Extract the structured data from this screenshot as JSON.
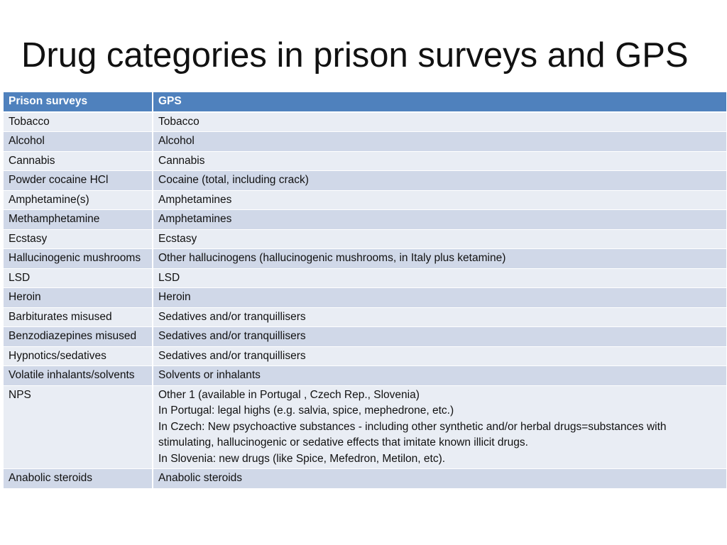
{
  "title": "Drug categories in prison surveys and GPS",
  "table": {
    "headers": [
      "Prison surveys",
      "GPS"
    ],
    "rows": [
      {
        "prison": "Tobacco",
        "gps": [
          "Tobacco"
        ]
      },
      {
        "prison": "Alcohol",
        "gps": [
          "Alcohol"
        ]
      },
      {
        "prison": "Cannabis",
        "gps": [
          "Cannabis"
        ]
      },
      {
        "prison": "Powder cocaine HCl",
        "gps": [
          "Cocaine (total, including crack)"
        ]
      },
      {
        "prison": "Amphetamine(s)",
        "gps": [
          "Amphetamines"
        ]
      },
      {
        "prison": "Methamphetamine",
        "gps": [
          "Amphetamines"
        ]
      },
      {
        "prison": "Ecstasy",
        "gps": [
          "Ecstasy"
        ]
      },
      {
        "prison": "Hallucinogenic mushrooms",
        "gps": [
          "Other hallucinogens (hallucinogenic mushrooms, in Italy plus ketamine)"
        ]
      },
      {
        "prison": "LSD",
        "gps": [
          "LSD"
        ]
      },
      {
        "prison": "Heroin",
        "gps": [
          "Heroin"
        ]
      },
      {
        "prison": "Barbiturates misused",
        "gps": [
          "Sedatives and/or tranquillisers"
        ]
      },
      {
        "prison": "Benzodiazepines misused",
        "gps": [
          "Sedatives and/or tranquillisers"
        ]
      },
      {
        "prison": "Hypnotics/sedatives",
        "gps": [
          "Sedatives and/or tranquillisers"
        ]
      },
      {
        "prison": "Volatile inhalants/solvents",
        "gps": [
          "Solvents or inhalants"
        ]
      },
      {
        "prison": "NPS",
        "gps": [
          "Other 1 (available in Portugal , Czech Rep., Slovenia)",
          "In Portugal: legal highs (e.g. salvia, spice, mephedrone, etc.)",
          "In Czech: New psychoactive substances - including other synthetic and/or herbal drugs=substances with stimulating, hallucinogenic or sedative effects that imitate known illicit drugs.",
          "In Slovenia: new drugs (like Spice, Mefedron, Metilon, etc)."
        ]
      },
      {
        "prison": "Anabolic steroids",
        "gps": [
          "Anabolic steroids"
        ]
      }
    ]
  }
}
